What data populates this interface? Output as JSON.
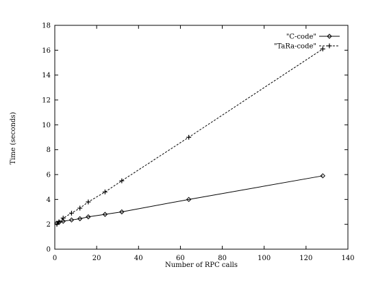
{
  "chart_data": {
    "type": "line",
    "xlabel": "Number of RPC calls",
    "ylabel": "Time (seconds)",
    "xlim": [
      0,
      140
    ],
    "ylim": [
      0,
      18
    ],
    "xticks": [
      0,
      20,
      40,
      60,
      80,
      100,
      120,
      140
    ],
    "yticks": [
      0,
      2,
      4,
      6,
      8,
      10,
      12,
      14,
      16,
      18
    ],
    "legend_position": "top-right",
    "grid": false,
    "series": [
      {
        "name": "\"C-code\"",
        "marker": "diamond",
        "line_style": "solid",
        "color": "#000000",
        "x": [
          1,
          2,
          4,
          8,
          12,
          16,
          24,
          32,
          64,
          128
        ],
        "y": [
          2.1,
          2.15,
          2.25,
          2.35,
          2.45,
          2.6,
          2.8,
          3.0,
          4.0,
          5.9
        ]
      },
      {
        "name": "\"TaRa-code\"",
        "marker": "plus",
        "line_style": "dashed",
        "color": "#000000",
        "x": [
          1,
          2,
          4,
          8,
          12,
          16,
          24,
          32,
          64,
          128
        ],
        "y": [
          2.0,
          2.2,
          2.5,
          2.9,
          3.3,
          3.8,
          4.6,
          5.5,
          9.0,
          16.1
        ]
      }
    ]
  }
}
